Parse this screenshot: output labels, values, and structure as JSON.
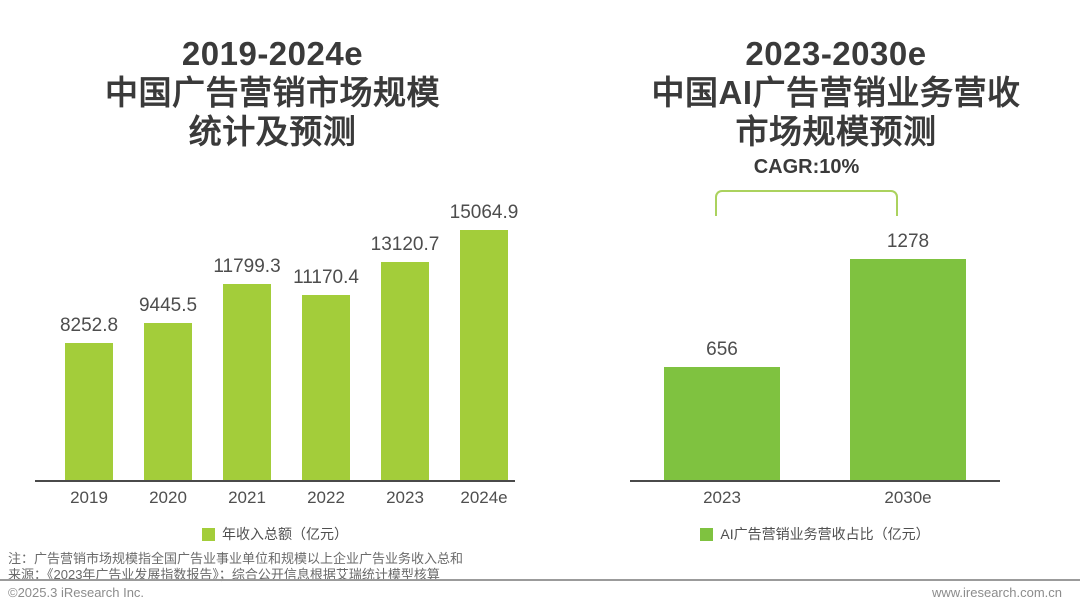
{
  "chart_data": [
    {
      "type": "bar",
      "title_lines": [
        "2019-2024e",
        "中国广告营销市场规模",
        "统计及预测"
      ],
      "categories": [
        "2019",
        "2020",
        "2021",
        "2022",
        "2023",
        "2024e"
      ],
      "values": [
        8252.8,
        9445.5,
        11799.3,
        11170.4,
        13120.7,
        15064.9
      ],
      "value_labels": [
        "8252.8",
        "9445.5",
        "11799.3",
        "11170.4",
        "13120.7",
        "15064.9"
      ],
      "legend": "年收入总额（亿元）",
      "bar_color": "#a3cd3a",
      "ylim": [
        0,
        15500
      ],
      "grid": false,
      "legend_position": "bottom-center"
    },
    {
      "type": "bar",
      "title_lines": [
        "2023-2030e",
        "中国AI广告营销业务营收",
        "市场规模预测"
      ],
      "categories": [
        "2023",
        "2030e"
      ],
      "values": [
        656,
        1278
      ],
      "value_labels": [
        "656",
        "1278"
      ],
      "legend": "AI广告营销业务营收占比（亿元）",
      "bar_color": "#7fc240",
      "annotation": "CAGR:10%",
      "annotation_color": "#abd25e",
      "ylim": [
        0,
        1400
      ],
      "grid": false,
      "legend_position": "bottom-center"
    }
  ],
  "footer": {
    "note_line1": "注：广告营销市场规模指全国广告业事业单位和规模以上企业广告业务收入总和",
    "note_line2": "来源：《2023年广告业发展指数报告》；综合公开信息根据艾瑞统计模型核算",
    "copyright": "©2025.3 iResearch Inc.",
    "website": "www.iresearch.com.cn"
  }
}
